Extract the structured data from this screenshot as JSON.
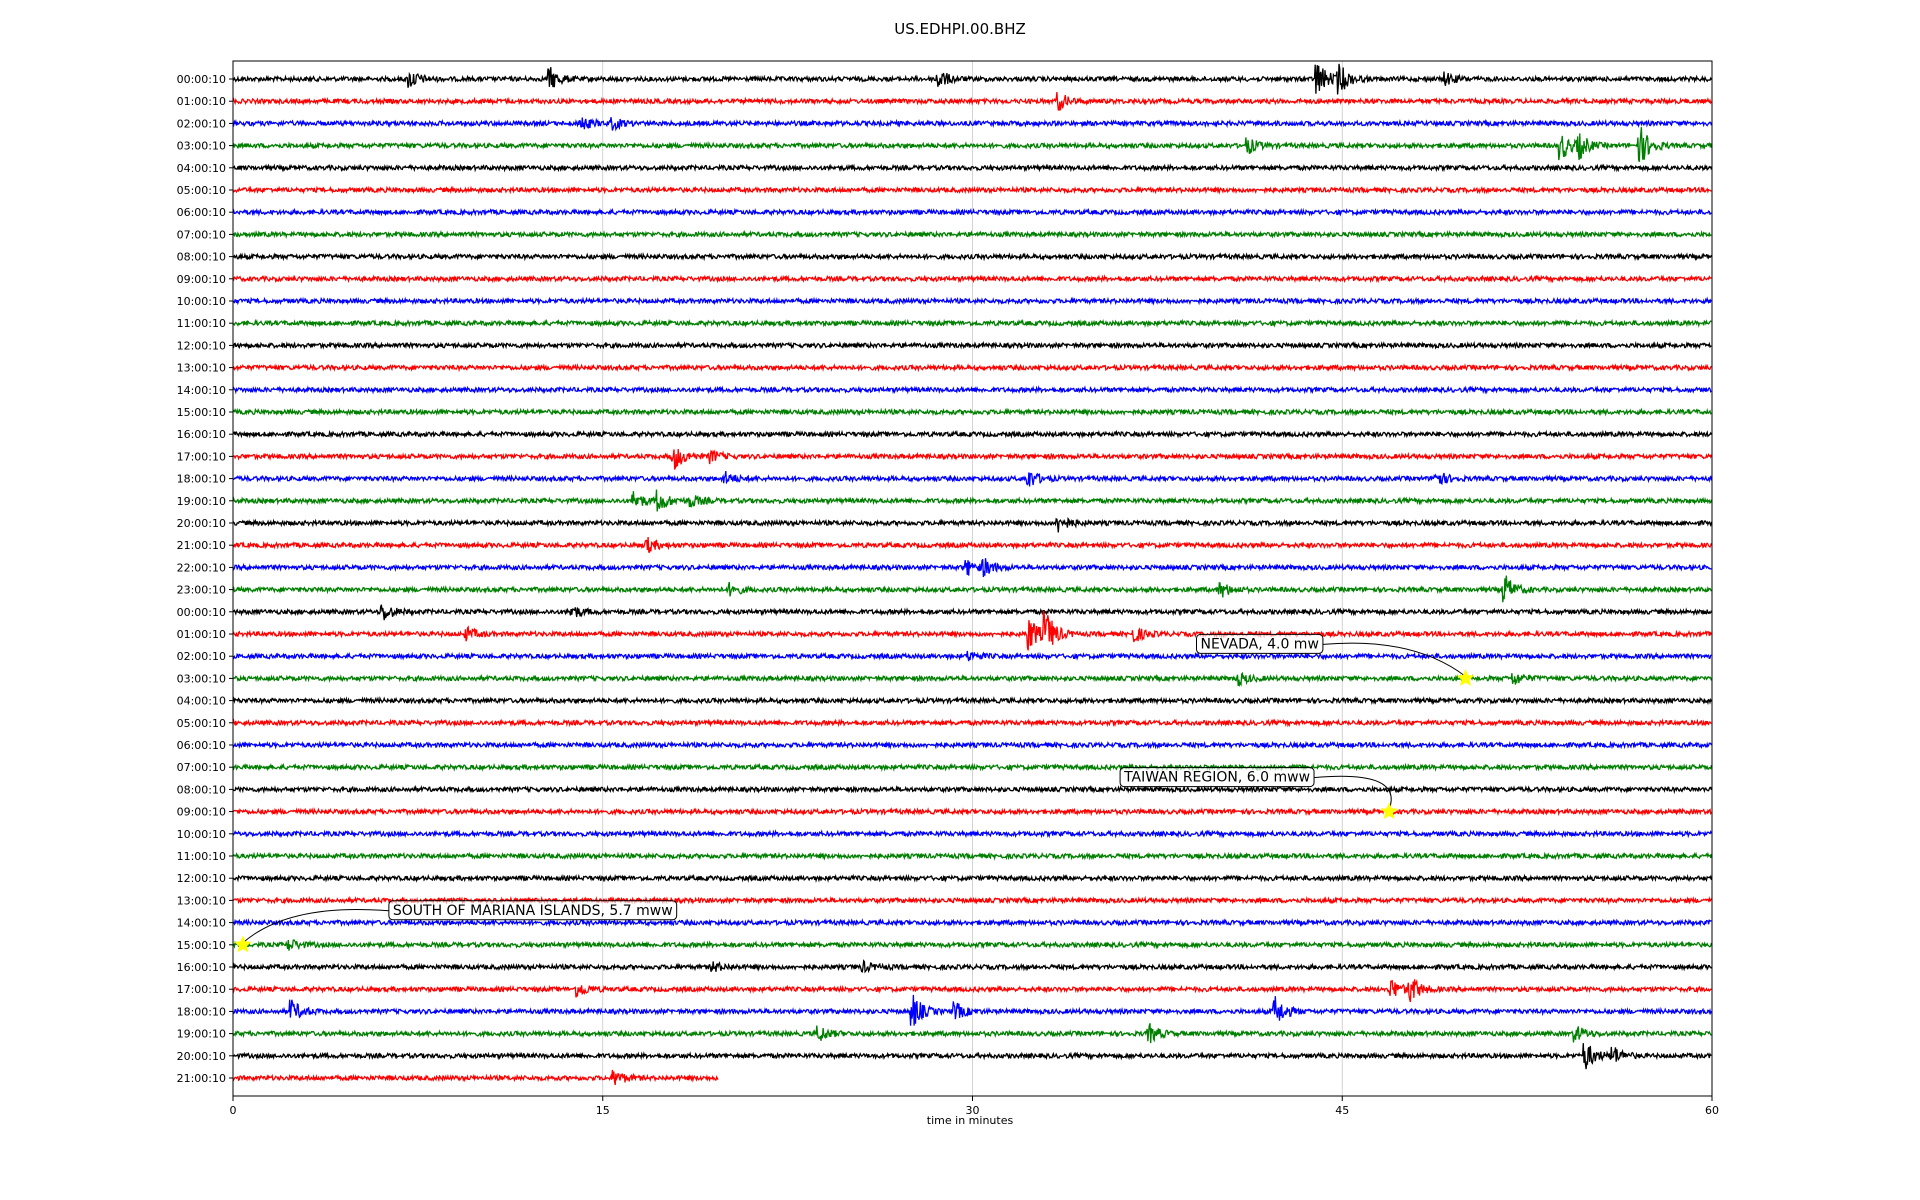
{
  "chart_data": {
    "type": "line",
    "title": "US.EDHPI.00.BHZ",
    "xlabel": "time in minutes",
    "xlim": [
      0,
      60
    ],
    "xticks": [
      0,
      15,
      30,
      45,
      60
    ],
    "grid_x": true,
    "row_colors": [
      "#000000",
      "#ff0000",
      "#0000ff",
      "#008000"
    ],
    "rows": [
      "00:00:10",
      "01:00:10",
      "02:00:10",
      "03:00:10",
      "04:00:10",
      "05:00:10",
      "06:00:10",
      "07:00:10",
      "08:00:10",
      "09:00:10",
      "10:00:10",
      "11:00:10",
      "12:00:10",
      "13:00:10",
      "14:00:10",
      "15:00:10",
      "16:00:10",
      "17:00:10",
      "18:00:10",
      "19:00:10",
      "20:00:10",
      "21:00:10",
      "22:00:10",
      "23:00:10",
      "00:00:10",
      "01:00:10",
      "02:00:10",
      "03:00:10",
      "04:00:10",
      "05:00:10",
      "06:00:10",
      "07:00:10",
      "08:00:10",
      "09:00:10",
      "10:00:10",
      "11:00:10",
      "12:00:10",
      "13:00:10",
      "14:00:10",
      "15:00:10",
      "16:00:10",
      "17:00:10",
      "18:00:10",
      "19:00:10",
      "20:00:10",
      "21:00:10"
    ],
    "last_row_end_minute": 19.7,
    "bursts": [
      {
        "row": 0,
        "minute": 7.2,
        "amp": 0.6
      },
      {
        "row": 0,
        "minute": 12.9,
        "amp": 0.7
      },
      {
        "row": 0,
        "minute": 28.6,
        "amp": 0.7
      },
      {
        "row": 0,
        "minute": 44.0,
        "amp": 1.2
      },
      {
        "row": 0,
        "minute": 44.9,
        "amp": 0.9
      },
      {
        "row": 0,
        "minute": 49.2,
        "amp": 0.4
      },
      {
        "row": 1,
        "minute": 33.5,
        "amp": 0.6
      },
      {
        "row": 2,
        "minute": 14.1,
        "amp": 0.5
      },
      {
        "row": 2,
        "minute": 15.4,
        "amp": 0.4
      },
      {
        "row": 3,
        "minute": 41.2,
        "amp": 0.5
      },
      {
        "row": 3,
        "minute": 53.9,
        "amp": 0.9
      },
      {
        "row": 3,
        "minute": 54.6,
        "amp": 0.8
      },
      {
        "row": 3,
        "minute": 57.1,
        "amp": 1.3
      },
      {
        "row": 17,
        "minute": 17.9,
        "amp": 0.9
      },
      {
        "row": 17,
        "minute": 19.4,
        "amp": 0.4
      },
      {
        "row": 18,
        "minute": 20.0,
        "amp": 0.4
      },
      {
        "row": 18,
        "minute": 32.3,
        "amp": 0.6
      },
      {
        "row": 18,
        "minute": 48.8,
        "amp": 0.6
      },
      {
        "row": 19,
        "minute": 16.3,
        "amp": 0.6
      },
      {
        "row": 19,
        "minute": 17.3,
        "amp": 0.7
      },
      {
        "row": 19,
        "minute": 18.6,
        "amp": 0.4
      },
      {
        "row": 20,
        "minute": 33.5,
        "amp": 0.6
      },
      {
        "row": 21,
        "minute": 16.8,
        "amp": 0.5
      },
      {
        "row": 22,
        "minute": 29.8,
        "amp": 0.5
      },
      {
        "row": 22,
        "minute": 30.5,
        "amp": 0.5
      },
      {
        "row": 23,
        "minute": 20.2,
        "amp": 0.4
      },
      {
        "row": 23,
        "minute": 40.1,
        "amp": 0.5
      },
      {
        "row": 23,
        "minute": 51.6,
        "amp": 1.0
      },
      {
        "row": 24,
        "minute": 6.1,
        "amp": 0.6
      },
      {
        "row": 24,
        "minute": 13.8,
        "amp": 0.4
      },
      {
        "row": 25,
        "minute": 9.5,
        "amp": 0.4
      },
      {
        "row": 25,
        "minute": 32.3,
        "amp": 1.2
      },
      {
        "row": 25,
        "minute": 33.0,
        "amp": 1.4
      },
      {
        "row": 25,
        "minute": 36.6,
        "amp": 0.5
      },
      {
        "row": 26,
        "minute": 29.9,
        "amp": 0.3
      },
      {
        "row": 27,
        "minute": 40.8,
        "amp": 0.4
      },
      {
        "row": 27,
        "minute": 52.0,
        "amp": 0.4
      },
      {
        "row": 39,
        "minute": 2.3,
        "amp": 0.4
      },
      {
        "row": 40,
        "minute": 19.5,
        "amp": 0.3
      },
      {
        "row": 40,
        "minute": 25.6,
        "amp": 0.3
      },
      {
        "row": 41,
        "minute": 14.0,
        "amp": 0.5
      },
      {
        "row": 41,
        "minute": 47.0,
        "amp": 0.7
      },
      {
        "row": 41,
        "minute": 47.8,
        "amp": 0.8
      },
      {
        "row": 42,
        "minute": 2.4,
        "amp": 0.7
      },
      {
        "row": 42,
        "minute": 27.6,
        "amp": 1.1
      },
      {
        "row": 42,
        "minute": 29.3,
        "amp": 0.6
      },
      {
        "row": 42,
        "minute": 42.3,
        "amp": 1.0
      },
      {
        "row": 43,
        "minute": 23.8,
        "amp": 0.5
      },
      {
        "row": 43,
        "minute": 37.2,
        "amp": 0.6
      },
      {
        "row": 43,
        "minute": 54.5,
        "amp": 0.5
      },
      {
        "row": 44,
        "minute": 54.9,
        "amp": 0.9
      },
      {
        "row": 44,
        "minute": 56.0,
        "amp": 0.6
      },
      {
        "row": 45,
        "minute": 15.5,
        "amp": 0.5
      }
    ],
    "annotations": [
      {
        "text": "NEVADA, 4.0 mw",
        "row": 27,
        "minute": 50.0
      },
      {
        "text": "TAIWAN REGION, 6.0 mww",
        "row": 33,
        "minute": 46.9
      },
      {
        "text": "SOUTH OF MARIANA ISLANDS, 5.7 mww",
        "row": 39,
        "minute": 0.4
      }
    ]
  }
}
